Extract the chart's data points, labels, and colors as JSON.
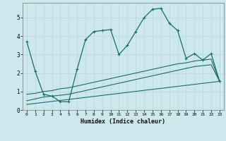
{
  "xlabel": "Humidex (Indice chaleur)",
  "background_color": "#cce8ec",
  "grid_color": "#b8d4d8",
  "line_color": "#1a6b6b",
  "xlim": [
    -0.5,
    23.5
  ],
  "ylim": [
    0,
    5.8
  ],
  "yticks": [
    0,
    1,
    2,
    3,
    4,
    5
  ],
  "xticks": [
    0,
    1,
    2,
    3,
    4,
    5,
    6,
    7,
    8,
    9,
    10,
    11,
    12,
    13,
    14,
    15,
    16,
    17,
    18,
    19,
    20,
    21,
    22,
    23
  ],
  "series1_x": [
    0,
    1,
    2,
    3,
    4,
    5,
    6,
    7,
    8,
    9,
    10,
    11,
    12,
    13,
    14,
    15,
    16,
    17,
    18,
    19,
    20,
    21,
    22,
    23
  ],
  "series1_y": [
    3.7,
    2.1,
    0.85,
    0.75,
    0.45,
    0.45,
    2.2,
    3.8,
    4.25,
    4.3,
    4.35,
    3.0,
    3.5,
    4.25,
    5.0,
    5.45,
    5.5,
    4.7,
    4.3,
    2.8,
    3.05,
    2.7,
    3.05,
    1.55
  ],
  "series2_x": [
    0,
    1,
    2,
    3,
    4,
    5,
    6,
    7,
    8,
    9,
    10,
    11,
    12,
    13,
    14,
    15,
    16,
    17,
    18,
    19,
    20,
    21,
    22,
    23
  ],
  "series2_y": [
    0.85,
    0.9,
    1.0,
    1.05,
    1.15,
    1.2,
    1.3,
    1.4,
    1.5,
    1.6,
    1.7,
    1.8,
    1.9,
    2.0,
    2.1,
    2.2,
    2.3,
    2.4,
    2.5,
    2.55,
    2.65,
    2.7,
    2.75,
    1.55
  ],
  "series3_x": [
    0,
    1,
    2,
    3,
    4,
    5,
    6,
    7,
    8,
    9,
    10,
    11,
    12,
    13,
    14,
    15,
    16,
    17,
    18,
    19,
    20,
    21,
    22,
    23
  ],
  "series3_y": [
    0.5,
    0.6,
    0.7,
    0.75,
    0.8,
    0.85,
    0.95,
    1.05,
    1.15,
    1.25,
    1.35,
    1.45,
    1.55,
    1.65,
    1.75,
    1.85,
    1.95,
    2.05,
    2.15,
    2.25,
    2.35,
    2.4,
    2.45,
    1.55
  ],
  "series4_x": [
    0,
    23
  ],
  "series4_y": [
    0.3,
    1.55
  ]
}
